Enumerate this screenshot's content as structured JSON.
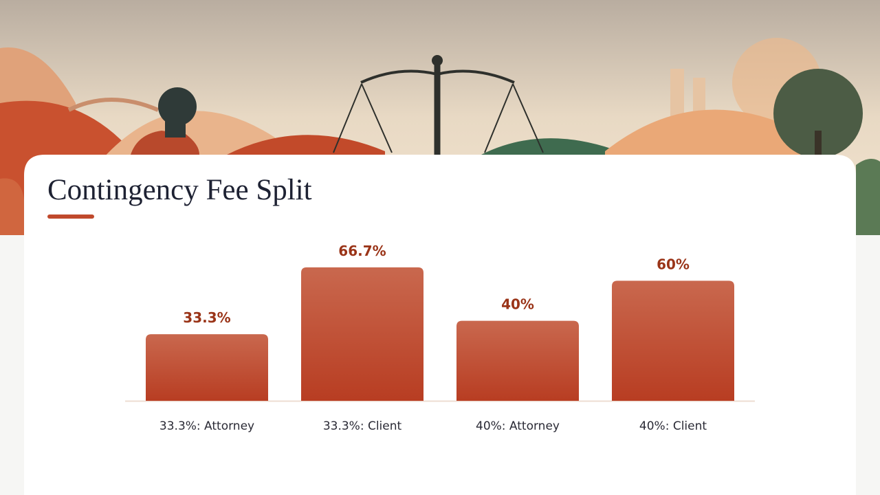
{
  "chart_data": {
    "type": "bar",
    "title": "Contingency Fee Split",
    "categories": [
      "33.3%: Attorney",
      "33.3%: Client",
      "40%: Attorney",
      "40%: Client"
    ],
    "values": [
      33.3,
      66.7,
      40,
      60
    ],
    "value_labels": [
      "33.3%",
      "66.7%",
      "40%",
      "60%"
    ],
    "color": "#c0492c"
  }
}
